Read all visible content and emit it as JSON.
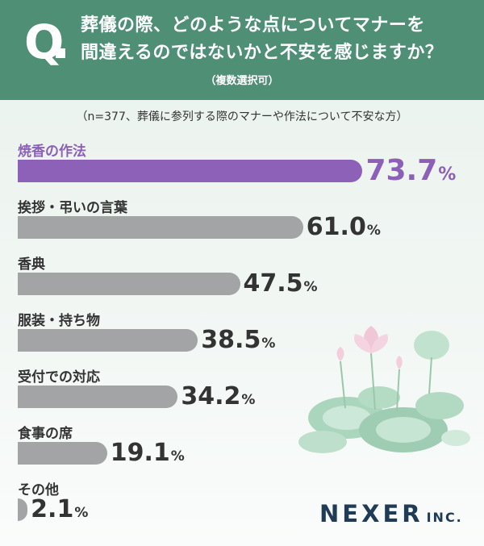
{
  "header": {
    "q_mark": "Q",
    "question_line1": "葬儀の際、どのような点についてマナーを",
    "question_line2": "間違えるのではないかと不安を感じますか？",
    "note": "（複数選択可）"
  },
  "sample_note": "（n=377、葬儀に参列する際のマナーや作法について不安な方）",
  "chart_data": {
    "type": "bar",
    "orientation": "horizontal",
    "categories": [
      "焼香の作法",
      "挨拶・弔いの言葉",
      "香典",
      "服装・持ち物",
      "受付での対応",
      "食事の席",
      "その他"
    ],
    "values": [
      73.7,
      61.0,
      47.5,
      38.5,
      34.2,
      19.1,
      2.1
    ],
    "value_labels": [
      "73.7",
      "61.0",
      "47.5",
      "38.5",
      "34.2",
      "19.1",
      "2.1"
    ],
    "unit": "%",
    "highlight_index": 0,
    "colors": {
      "highlight": "#8e61b8",
      "default": "#a2a4a6"
    }
  },
  "logo": {
    "name": "NEXER",
    "suffix": "INC."
  },
  "colors": {
    "header_bg": "#4e8f76",
    "accent": "#8c60b6"
  }
}
